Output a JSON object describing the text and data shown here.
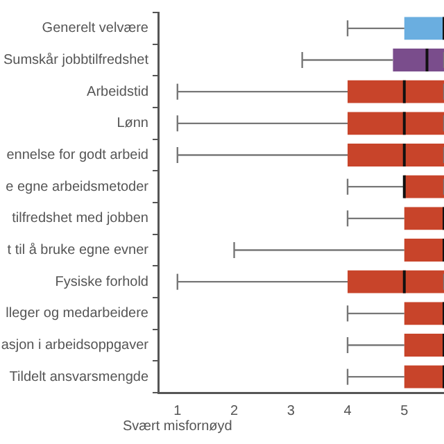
{
  "chart_data": {
    "type": "box",
    "orientation": "horizontal",
    "categories": [
      "Generelt velvære",
      "Sumskår jobbtilfredshet",
      "Arbeidstid",
      "Lønn",
      "ennelse for godt arbeid",
      "e egne arbeidsmetoder",
      "tilfredshet med jobben",
      "t til å bruke egne evner",
      "Fysiske forhold",
      "lleger og medarbeidere",
      "asjon i arbeidsoppgaver",
      "Tildelt ansvarsmengde"
    ],
    "colors": [
      "#6aaee0",
      "#7a4d8c",
      "#c8442a",
      "#c8442a",
      "#c8442a",
      "#c8442a",
      "#c8442a",
      "#c8442a",
      "#c8442a",
      "#c8442a",
      "#c8442a",
      "#c8442a"
    ],
    "boxes": [
      {
        "low": 4,
        "q1": 5,
        "median": 5.7,
        "q3": 5.7,
        "high": 5.7
      },
      {
        "low": 3.2,
        "q1": 4.8,
        "median": 5.4,
        "q3": 5.7,
        "high": 5.7
      },
      {
        "low": 1,
        "q1": 4,
        "median": 5,
        "q3": 5.7,
        "high": 5.7
      },
      {
        "low": 1,
        "q1": 4,
        "median": 5,
        "q3": 5.7,
        "high": 5.7
      },
      {
        "low": 1,
        "q1": 4,
        "median": 5,
        "q3": 5.7,
        "high": 5.7
      },
      {
        "low": 4,
        "q1": 5,
        "median": 5,
        "q3": 5.7,
        "high": 5.7
      },
      {
        "low": 4,
        "q1": 5,
        "median": 5.7,
        "q3": 5.7,
        "high": 5.7
      },
      {
        "low": 2,
        "q1": 5,
        "median": 5.7,
        "q3": 5.7,
        "high": 5.7
      },
      {
        "low": 1,
        "q1": 4,
        "median": 5,
        "q3": 5.7,
        "high": 5.7
      },
      {
        "low": 4,
        "q1": 5,
        "median": 5.7,
        "q3": 5.7,
        "high": 5.7
      },
      {
        "low": 4,
        "q1": 5,
        "median": 5.7,
        "q3": 5.7,
        "high": 5.7
      },
      {
        "low": 4,
        "q1": 5,
        "median": 5.7,
        "q3": 5.7,
        "high": 5.7
      }
    ],
    "xlim": [
      0.66,
      5.7
    ],
    "xticks": [
      1,
      2,
      3,
      4,
      5
    ],
    "annotations": [
      "Svært misfornøyd"
    ],
    "grid": false,
    "legend": false
  }
}
